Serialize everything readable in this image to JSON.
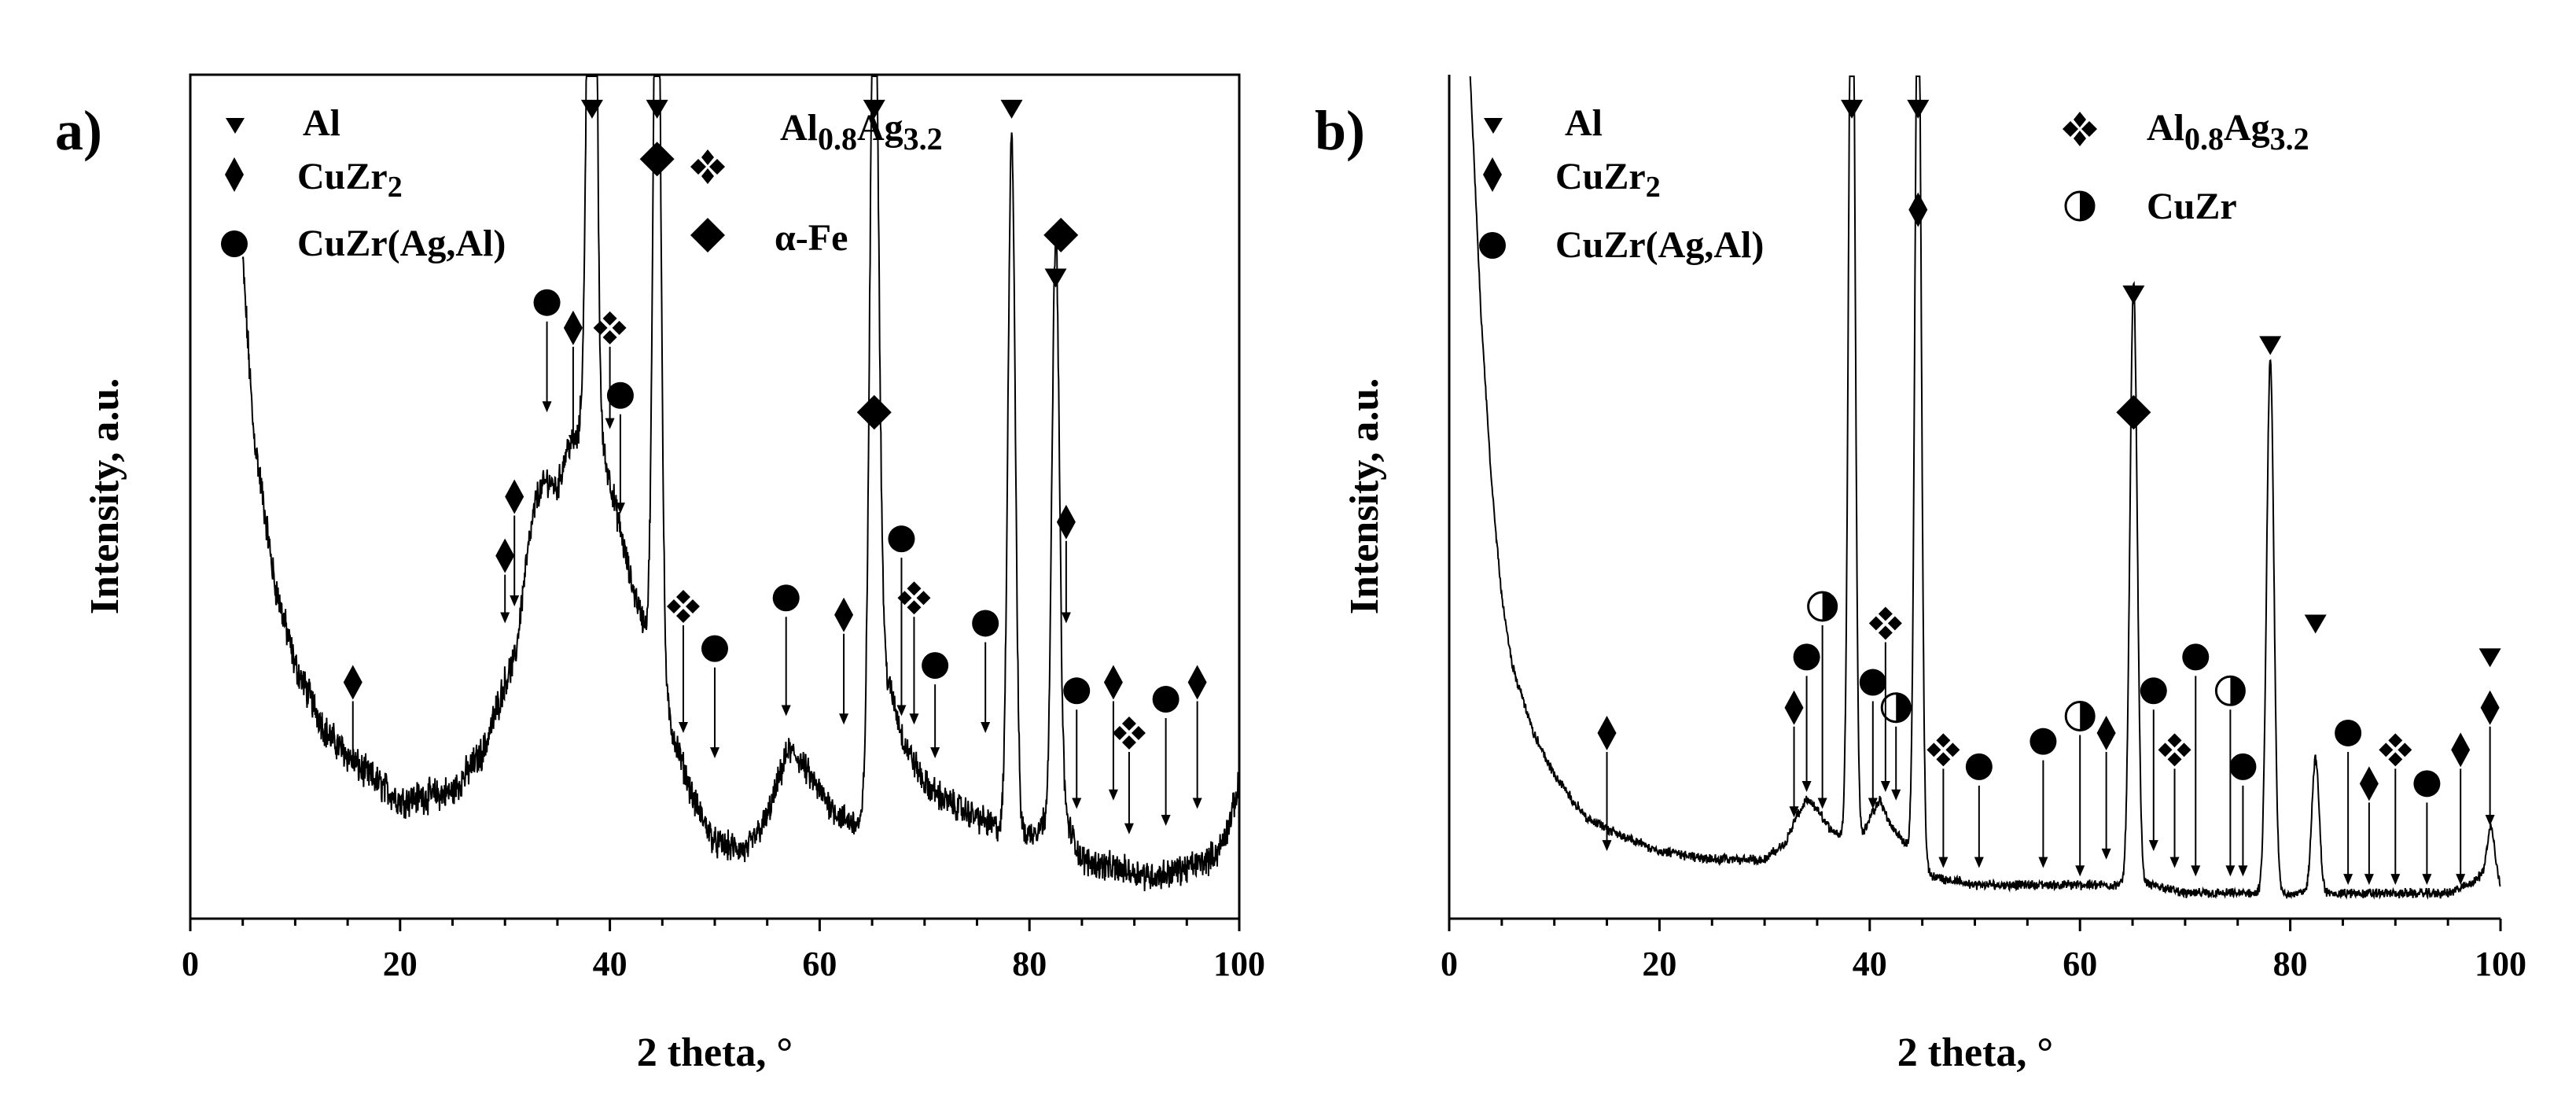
{
  "figure": {
    "type": "xrd-diffraction",
    "domain": "Chart"
  },
  "chart_data": [
    {
      "type": "line",
      "panel_label": "a)",
      "xlabel": "2 theta, °",
      "ylabel": "Intensity, a.u.",
      "xlim": [
        0,
        100
      ],
      "ylim": [
        0,
        100
      ],
      "xticks": [
        "0",
        "20",
        "40",
        "60",
        "80",
        "100"
      ],
      "legend": [
        {
          "marker": "triangle-down",
          "label": "Al"
        },
        {
          "marker": "diamond-small",
          "label": "CuZr",
          "sub": "2"
        },
        {
          "marker": "circle",
          "label": "CuZr(Ag,Al)"
        },
        {
          "marker": "cross-diamonds",
          "label": "Al",
          "sub": "0.8",
          "mid": "Ag",
          "sub2": "3.2"
        },
        {
          "marker": "diamond-large",
          "label": "α-Fe"
        }
      ],
      "baseline": [
        [
          5,
          78
        ],
        [
          6,
          58
        ],
        [
          8,
          40
        ],
        [
          10,
          30
        ],
        [
          13,
          22
        ],
        [
          16,
          18
        ],
        [
          20,
          14
        ],
        [
          25,
          15
        ],
        [
          28,
          20
        ],
        [
          30,
          28
        ],
        [
          31,
          31
        ],
        [
          32,
          42
        ],
        [
          33,
          50
        ],
        [
          34,
          52
        ],
        [
          35,
          51
        ],
        [
          36,
          56
        ],
        [
          37,
          57
        ],
        [
          38,
          70
        ],
        [
          39,
          57
        ],
        [
          40,
          52
        ],
        [
          41,
          46
        ],
        [
          42,
          40
        ],
        [
          44,
          32
        ],
        [
          46,
          22
        ],
        [
          48,
          14
        ],
        [
          50,
          9
        ],
        [
          53,
          8
        ],
        [
          55,
          12
        ],
        [
          57,
          20
        ],
        [
          58,
          19
        ],
        [
          60,
          15
        ],
        [
          62,
          12
        ],
        [
          64,
          11
        ],
        [
          65,
          18
        ],
        [
          66,
          30
        ],
        [
          67,
          26
        ],
        [
          68,
          21
        ],
        [
          70,
          16
        ],
        [
          72,
          14
        ],
        [
          75,
          12
        ],
        [
          78,
          10
        ],
        [
          80,
          10
        ],
        [
          82,
          12
        ],
        [
          83,
          14
        ],
        [
          84,
          10
        ],
        [
          85,
          7
        ],
        [
          88,
          6
        ],
        [
          92,
          5
        ],
        [
          95,
          6
        ],
        [
          97,
          7
        ],
        [
          98,
          8
        ],
        [
          99,
          11
        ],
        [
          100,
          16
        ]
      ],
      "peaks": [
        {
          "x": 38.3,
          "h": 120,
          "w": 0.35
        },
        {
          "x": 44.5,
          "h": 100,
          "w": 0.35
        },
        {
          "x": 65.2,
          "h": 100,
          "w": 0.4
        },
        {
          "x": 78.3,
          "h": 83,
          "w": 0.35
        },
        {
          "x": 82.5,
          "h": 68,
          "w": 0.35
        }
      ],
      "annotations": [
        {
          "marker": "triangle-down",
          "x": 38.3,
          "y": 96
        },
        {
          "marker": "triangle-down",
          "x": 44.5,
          "y": 96
        },
        {
          "marker": "triangle-down",
          "x": 65.2,
          "y": 96
        },
        {
          "marker": "triangle-down",
          "x": 78.3,
          "y": 96
        },
        {
          "marker": "triangle-down",
          "x": 82.5,
          "y": 76
        },
        {
          "marker": "diamond-large",
          "x": 44.5,
          "y": 90
        },
        {
          "marker": "diamond-large",
          "x": 65.2,
          "y": 60
        },
        {
          "marker": "diamond-large",
          "x": 83.0,
          "y": 81
        },
        {
          "marker": "diamond-small",
          "x": 15.5,
          "y": 28,
          "arrow_to": 18
        },
        {
          "marker": "diamond-small",
          "x": 30.0,
          "y": 43,
          "arrow_to": 35
        },
        {
          "marker": "diamond-small",
          "x": 30.9,
          "y": 50,
          "arrow_to": 37
        },
        {
          "marker": "diamond-small",
          "x": 36.5,
          "y": 70,
          "arrow_to": 56
        },
        {
          "marker": "diamond-small",
          "x": 62.3,
          "y": 36,
          "arrow_to": 23
        },
        {
          "marker": "diamond-small",
          "x": 83.5,
          "y": 47,
          "arrow_to": 35
        },
        {
          "marker": "diamond-small",
          "x": 88.0,
          "y": 28,
          "arrow_to": 14
        },
        {
          "marker": "diamond-small",
          "x": 96.0,
          "y": 28,
          "arrow_to": 13
        },
        {
          "marker": "circle",
          "x": 34.0,
          "y": 73,
          "arrow_to": 60
        },
        {
          "marker": "circle",
          "x": 41.0,
          "y": 62,
          "arrow_to": 48
        },
        {
          "marker": "circle",
          "x": 50.0,
          "y": 32,
          "arrow_to": 19
        },
        {
          "marker": "circle",
          "x": 56.8,
          "y": 38,
          "arrow_to": 24
        },
        {
          "marker": "circle",
          "x": 67.8,
          "y": 45,
          "arrow_to": 24
        },
        {
          "marker": "circle",
          "x": 71.0,
          "y": 30,
          "arrow_to": 19
        },
        {
          "marker": "circle",
          "x": 75.8,
          "y": 35,
          "arrow_to": 22
        },
        {
          "marker": "circle",
          "x": 84.5,
          "y": 27,
          "arrow_to": 13
        },
        {
          "marker": "circle",
          "x": 93.0,
          "y": 26,
          "arrow_to": 11
        },
        {
          "marker": "cross-diamonds",
          "x": 40.0,
          "y": 70,
          "arrow_to": 58
        },
        {
          "marker": "cross-diamonds",
          "x": 47.0,
          "y": 37,
          "arrow_to": 22
        },
        {
          "marker": "cross-diamonds",
          "x": 69.0,
          "y": 38,
          "arrow_to": 23
        },
        {
          "marker": "cross-diamonds",
          "x": 89.5,
          "y": 22,
          "arrow_to": 10
        }
      ]
    },
    {
      "type": "line",
      "panel_label": "b)",
      "xlabel": "2 theta, °",
      "ylabel": "Intensity, a.u.",
      "xlim": [
        0,
        100
      ],
      "ylim": [
        0,
        100
      ],
      "xticks": [
        "0",
        "20",
        "40",
        "60",
        "80",
        "100"
      ],
      "legend": [
        {
          "marker": "triangle-down",
          "label": "Al"
        },
        {
          "marker": "diamond-small",
          "label": "CuZr",
          "sub": "2"
        },
        {
          "marker": "circle",
          "label": "CuZr(Ag,Al)"
        },
        {
          "marker": "cross-diamonds",
          "label": "Al",
          "sub": "0.8",
          "mid": "Ag",
          "sub2": "3.2"
        },
        {
          "marker": "half-circle",
          "label": "CuZr"
        }
      ],
      "baseline": [
        [
          2,
          100
        ],
        [
          3,
          72
        ],
        [
          4,
          52
        ],
        [
          5,
          38
        ],
        [
          6,
          30
        ],
        [
          8,
          22
        ],
        [
          10,
          17
        ],
        [
          13,
          12
        ],
        [
          16,
          10
        ],
        [
          20,
          8
        ],
        [
          25,
          7
        ],
        [
          30,
          7
        ],
        [
          32,
          9
        ],
        [
          33,
          12
        ],
        [
          34,
          14
        ],
        [
          35,
          13
        ],
        [
          36,
          11
        ],
        [
          37,
          10
        ],
        [
          39,
          9
        ],
        [
          40,
          12
        ],
        [
          41,
          14
        ],
        [
          42,
          11
        ],
        [
          44,
          8
        ],
        [
          46,
          5
        ],
        [
          50,
          4
        ],
        [
          55,
          4
        ],
        [
          60,
          4
        ],
        [
          64,
          4
        ],
        [
          67,
          4
        ],
        [
          70,
          3
        ],
        [
          75,
          3
        ],
        [
          80,
          3
        ],
        [
          85,
          3
        ],
        [
          90,
          3
        ],
        [
          95,
          3
        ],
        [
          97,
          4
        ],
        [
          98,
          5
        ],
        [
          99,
          6
        ],
        [
          100,
          4
        ]
      ],
      "peaks": [
        {
          "x": 38.3,
          "h": 120,
          "w": 0.3
        },
        {
          "x": 44.6,
          "h": 110,
          "w": 0.3
        },
        {
          "x": 65.1,
          "h": 71,
          "w": 0.35
        },
        {
          "x": 78.1,
          "h": 63,
          "w": 0.35
        },
        {
          "x": 82.4,
          "h": 16,
          "w": 0.35
        },
        {
          "x": 99.1,
          "h": 5,
          "w": 0.35
        }
      ],
      "annotations": [
        {
          "marker": "triangle-down",
          "x": 38.3,
          "y": 96
        },
        {
          "marker": "triangle-down",
          "x": 44.6,
          "y": 96
        },
        {
          "marker": "triangle-down",
          "x": 65.1,
          "y": 74
        },
        {
          "marker": "triangle-down",
          "x": 78.1,
          "y": 68
        },
        {
          "marker": "triangle-down",
          "x": 82.4,
          "y": 35
        },
        {
          "marker": "triangle-down",
          "x": 99.0,
          "y": 31
        },
        {
          "marker": "diamond-large",
          "x": 65.1,
          "y": 60
        },
        {
          "marker": "diamond-small",
          "x": 44.6,
          "y": 84
        },
        {
          "marker": "diamond-small",
          "x": 15.0,
          "y": 22,
          "arrow_to": 8
        },
        {
          "marker": "diamond-small",
          "x": 32.8,
          "y": 25,
          "arrow_to": 12
        },
        {
          "marker": "diamond-small",
          "x": 62.5,
          "y": 22,
          "arrow_to": 7
        },
        {
          "marker": "diamond-small",
          "x": 87.5,
          "y": 16,
          "arrow_to": 4
        },
        {
          "marker": "diamond-small",
          "x": 96.2,
          "y": 20,
          "arrow_to": 4
        },
        {
          "marker": "diamond-small",
          "x": 99.0,
          "y": 25,
          "arrow_to": 11
        },
        {
          "marker": "circle",
          "x": 34.0,
          "y": 31,
          "arrow_to": 15
        },
        {
          "marker": "circle",
          "x": 40.3,
          "y": 28,
          "arrow_to": 13
        },
        {
          "marker": "circle",
          "x": 50.4,
          "y": 18,
          "arrow_to": 6
        },
        {
          "marker": "circle",
          "x": 56.5,
          "y": 21,
          "arrow_to": 6
        },
        {
          "marker": "circle",
          "x": 67.0,
          "y": 27,
          "arrow_to": 8
        },
        {
          "marker": "circle",
          "x": 71.0,
          "y": 31,
          "arrow_to": 5
        },
        {
          "marker": "circle",
          "x": 75.5,
          "y": 18,
          "arrow_to": 5
        },
        {
          "marker": "circle",
          "x": 85.5,
          "y": 22,
          "arrow_to": 4
        },
        {
          "marker": "circle",
          "x": 93.0,
          "y": 16,
          "arrow_to": 4
        },
        {
          "marker": "half-circle",
          "x": 35.5,
          "y": 37,
          "arrow_to": 13
        },
        {
          "marker": "half-circle",
          "x": 42.5,
          "y": 25,
          "arrow_to": 14
        },
        {
          "marker": "half-circle",
          "x": 60.0,
          "y": 24,
          "arrow_to": 5
        },
        {
          "marker": "half-circle",
          "x": 74.3,
          "y": 27,
          "arrow_to": 5
        },
        {
          "marker": "cross-diamonds",
          "x": 41.5,
          "y": 35,
          "arrow_to": 15
        },
        {
          "marker": "cross-diamonds",
          "x": 47.0,
          "y": 20,
          "arrow_to": 6
        },
        {
          "marker": "cross-diamonds",
          "x": 69.0,
          "y": 20,
          "arrow_to": 6
        },
        {
          "marker": "cross-diamonds",
          "x": 90.0,
          "y": 20,
          "arrow_to": 4
        }
      ]
    }
  ]
}
